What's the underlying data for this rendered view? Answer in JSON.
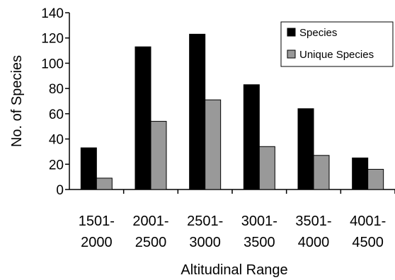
{
  "chart_data": {
    "type": "bar",
    "title": "",
    "xlabel": "Altitudinal Range",
    "ylabel": "No. of Species",
    "ylim": [
      0,
      140
    ],
    "yticks": [
      0,
      20,
      40,
      60,
      80,
      100,
      120,
      140
    ],
    "categories": [
      [
        "1501-",
        "2000"
      ],
      [
        "2001-",
        "2500"
      ],
      [
        "2501-",
        "3000"
      ],
      [
        "3001-",
        "3500"
      ],
      [
        "3501-",
        "4000"
      ],
      [
        "4001-",
        "4500"
      ]
    ],
    "series": [
      {
        "name": "Species",
        "color": "#000000",
        "values": [
          33,
          113,
          123,
          83,
          64,
          25
        ]
      },
      {
        "name": "Unique Species",
        "color": "#999999",
        "values": [
          9,
          54,
          71,
          34,
          27,
          16
        ]
      }
    ],
    "grid": false,
    "legend": "top-right"
  }
}
